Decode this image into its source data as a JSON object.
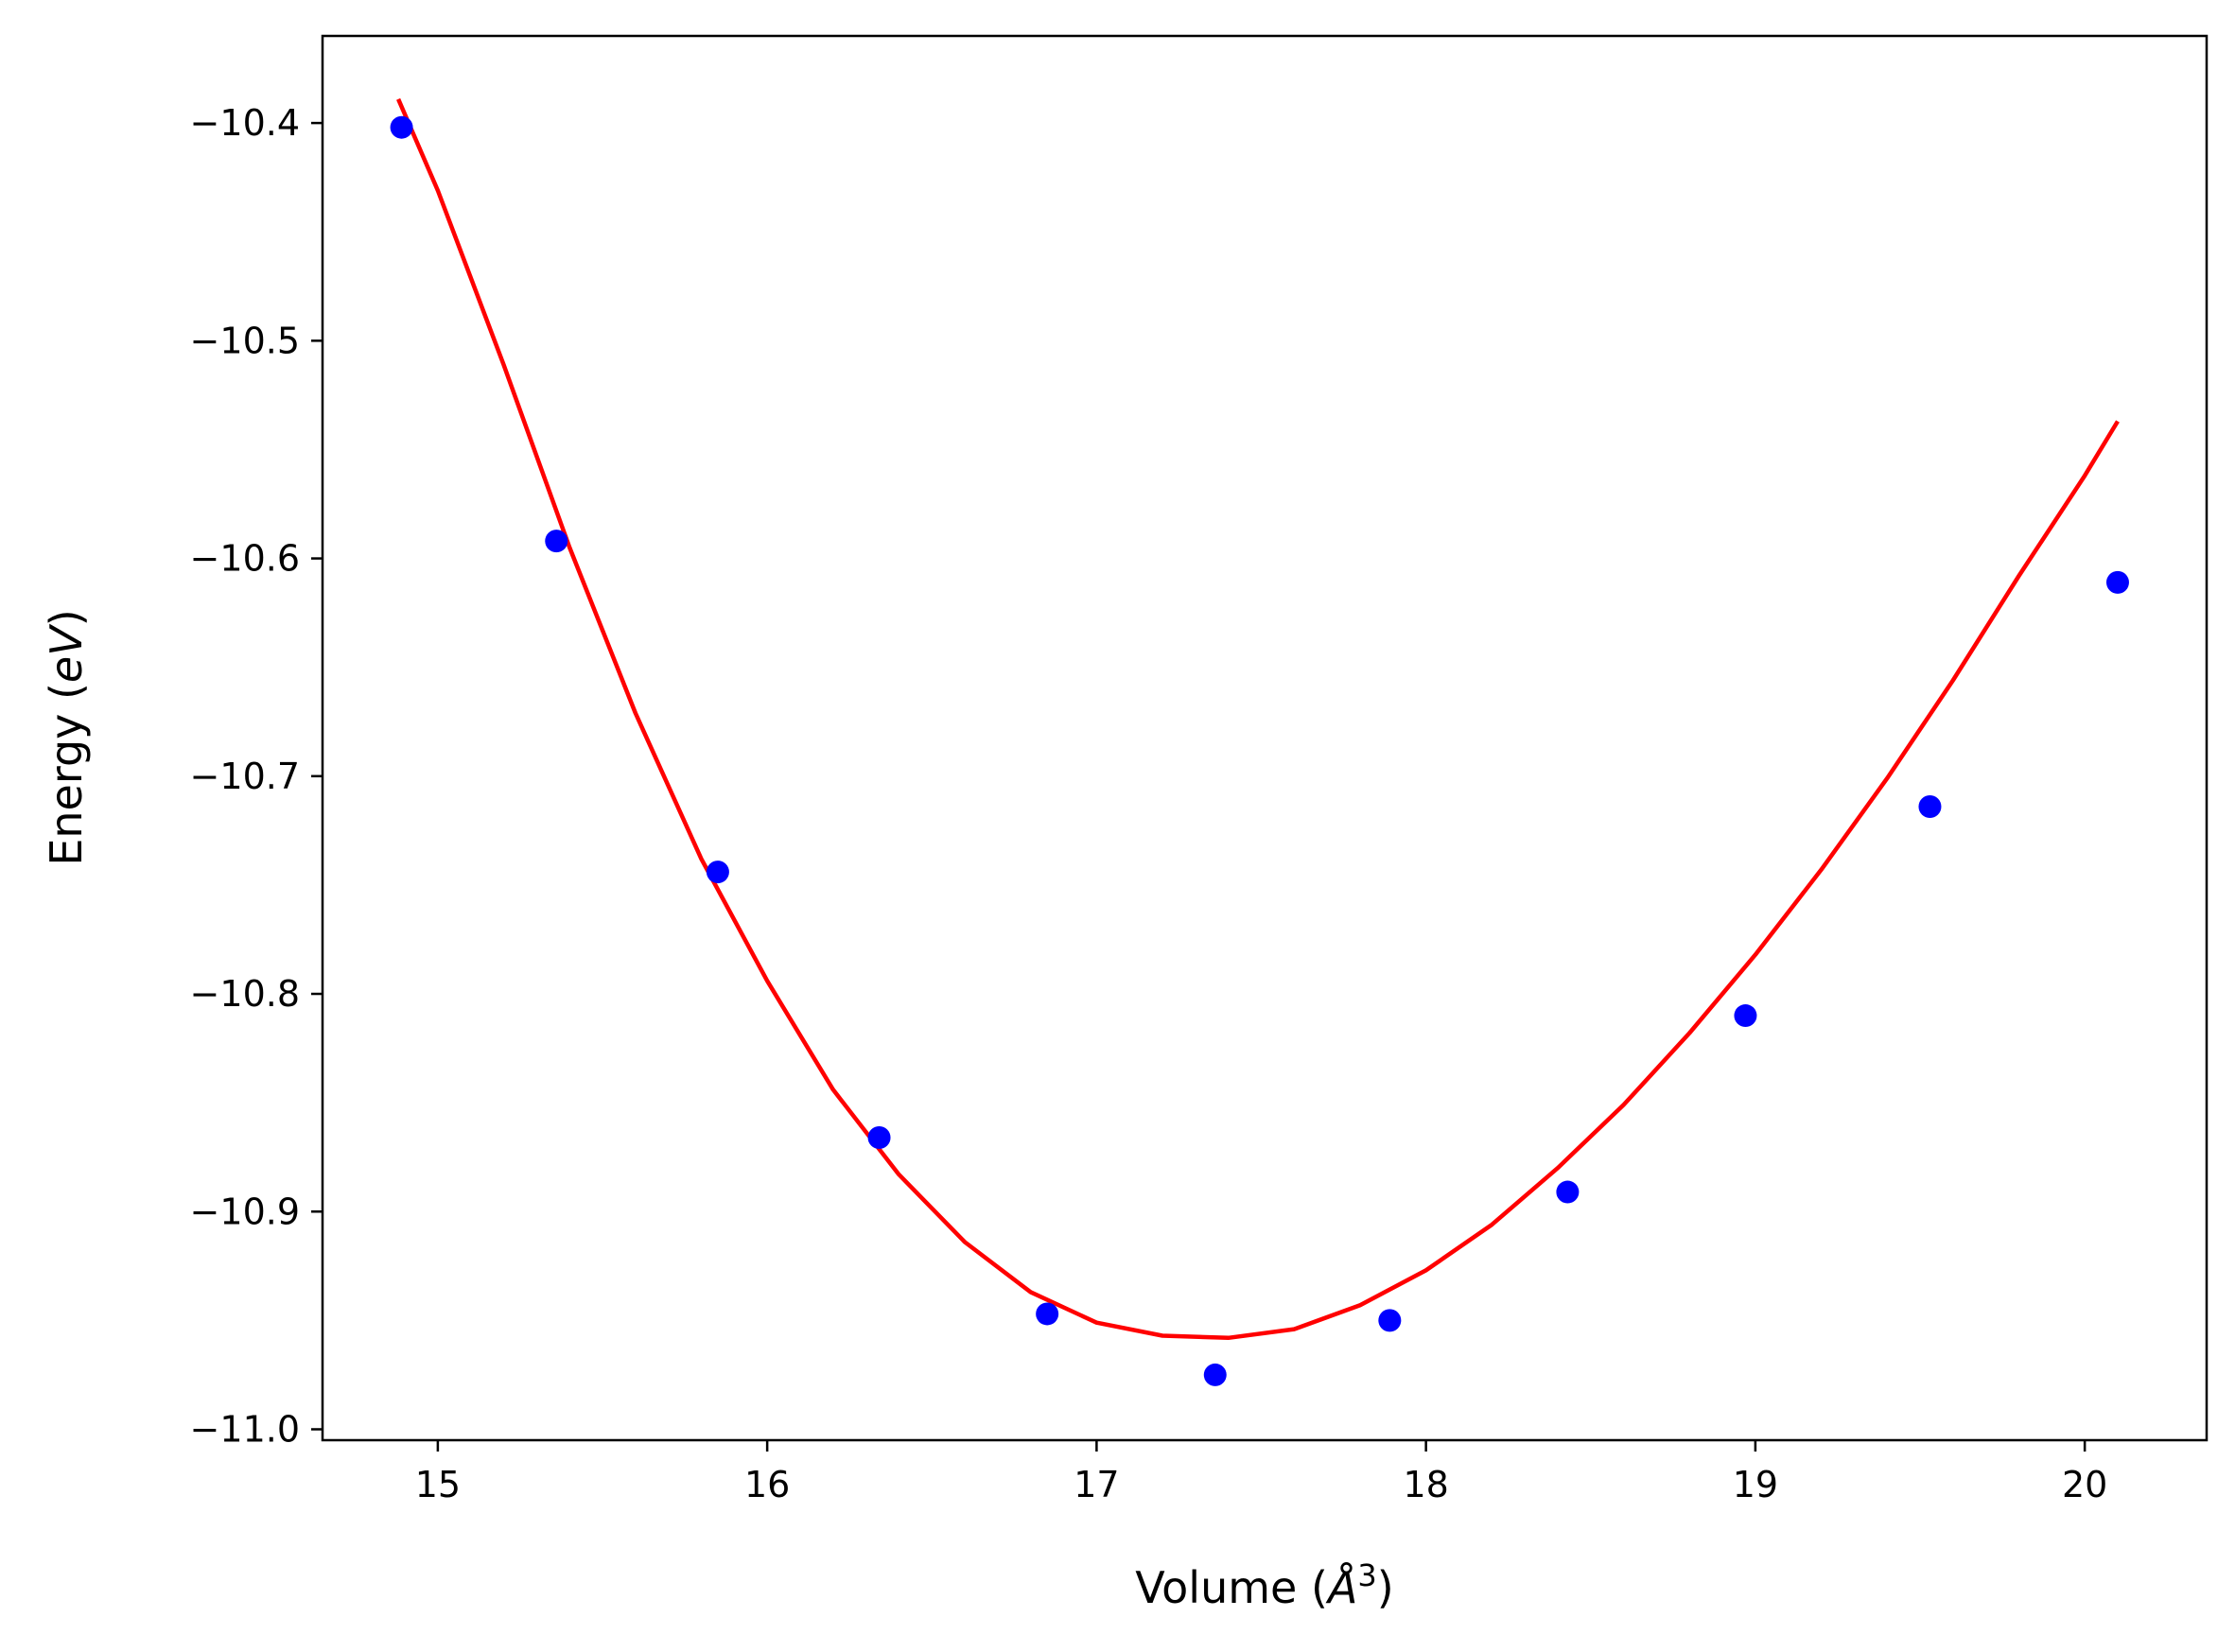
{
  "chart_data": {
    "type": "scatter",
    "title": "",
    "xlabel": "Volume",
    "xlabel_unit": "Å",
    "xlabel_unit_exponent": "3",
    "ylabel": "Energy",
    "ylabel_unit": "eV",
    "xlim": [
      14.65,
      20.37
    ],
    "ylim": [
      -11.005,
      -10.36
    ],
    "xticks": [
      15,
      16,
      17,
      18,
      19,
      20
    ],
    "xtick_labels": [
      "15",
      "16",
      "17",
      "18",
      "19",
      "20"
    ],
    "yticks": [
      -10.4,
      -10.5,
      -10.6,
      -10.7,
      -10.8,
      -10.9,
      -11.0
    ],
    "ytick_labels": [
      "−10.4",
      "−10.5",
      "−10.6",
      "−10.7",
      "−10.8",
      "−10.9",
      "−11.0"
    ],
    "grid": false,
    "legend": "none",
    "series": [
      {
        "kind": "scatter",
        "color": "#0000ff",
        "x": [
          14.89,
          15.36,
          15.85,
          16.34,
          16.85,
          17.36,
          17.89,
          18.43,
          18.97,
          19.53,
          20.1
        ],
        "y": [
          -10.402,
          -10.592,
          -10.744,
          -10.866,
          -10.947,
          -10.975,
          -10.95,
          -10.891,
          -10.81,
          -10.714,
          -10.611
        ]
      },
      {
        "kind": "line",
        "color": "#ff0000",
        "x": [
          14.88,
          15.0,
          15.2,
          15.4,
          15.6,
          15.8,
          16.0,
          16.2,
          16.4,
          16.6,
          16.8,
          17.0,
          17.2,
          17.4,
          17.6,
          17.8,
          18.0,
          18.2,
          18.4,
          18.6,
          18.8,
          19.0,
          19.2,
          19.4,
          19.6,
          19.8,
          20.0,
          20.1
        ],
        "y": [
          -10.389,
          -10.431,
          -10.511,
          -10.595,
          -10.671,
          -10.738,
          -10.794,
          -10.844,
          -10.883,
          -10.914,
          -10.937,
          -10.951,
          -10.957,
          -10.958,
          -10.954,
          -10.943,
          -10.927,
          -10.906,
          -10.88,
          -10.851,
          -10.818,
          -10.782,
          -10.743,
          -10.701,
          -10.656,
          -10.608,
          -10.562,
          -10.537
        ]
      }
    ]
  }
}
